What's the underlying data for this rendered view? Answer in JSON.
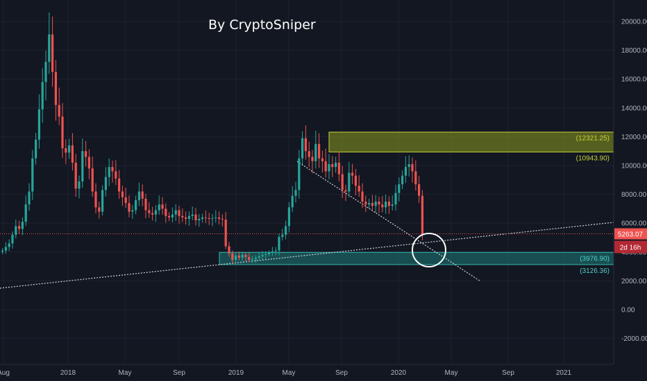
{
  "watermark": "By CryptoSniper",
  "colors": {
    "background": "#131722",
    "bull": "#26a69a",
    "bear": "#ef5350",
    "grid": "#1e2230",
    "resistance_zone": "#8c9a1e",
    "support_zone": "#1e7b78",
    "price_line": "#ef5350",
    "circle": "#ffffff"
  },
  "chart_data": {
    "type": "candlestick",
    "timeframe": "weekly",
    "ylim": [
      -3000,
      21000
    ],
    "y_ticks": [
      "20000.00",
      "18000.00",
      "16000.00",
      "14000.00",
      "12000.00",
      "10000.00",
      "8000.00",
      "6000.00",
      "4000.00",
      "2000.00",
      "0.00",
      "-2000.00"
    ],
    "x_ticks": [
      "Aug",
      "2018",
      "May",
      "Sep",
      "2019",
      "May",
      "Sep",
      "2020",
      "May",
      "Sep",
      "2021"
    ],
    "current_price": {
      "label": "5263.07",
      "value": 5263.07
    },
    "countdown": "2d 16h",
    "zones": [
      {
        "name": "resistance",
        "low": 10943.9,
        "high": 12321.25,
        "low_label": "(10943.90)",
        "high_label": "(12321.25)"
      },
      {
        "name": "support",
        "low": 3126.36,
        "high": 3976.9,
        "low_label": "(3126.36)",
        "high_label": "(3976.90)"
      }
    ],
    "trendlines": [
      {
        "name": "rising-support",
        "style": "dotted"
      },
      {
        "name": "falling-trend",
        "style": "dotted"
      }
    ],
    "series_close": [
      4100,
      4350,
      4600,
      5200,
      5800,
      5600,
      6100,
      7300,
      8200,
      10500,
      11800,
      13900,
      15800,
      17200,
      19100,
      16500,
      14200,
      13400,
      11200,
      10900,
      11400,
      10200,
      8400,
      8900,
      11000,
      10600,
      9800,
      8200,
      7100,
      6800,
      8300,
      9200,
      9900,
      9600,
      9100,
      8200,
      7800,
      7400,
      6800,
      6900,
      7600,
      8200,
      7700,
      6900,
      6700,
      6600,
      6900,
      7300,
      7000,
      6500,
      6400,
      6600,
      6900,
      6500,
      6400,
      6300,
      6500,
      6600,
      6200,
      6300,
      6400,
      6350,
      6300,
      6350,
      6400,
      6300,
      6250,
      4400,
      3900,
      3450,
      3750,
      3600,
      3800,
      3650,
      3450,
      3500,
      3600,
      3700,
      3800,
      3850,
      3950,
      4050,
      4100,
      5050,
      5200,
      5800,
      7100,
      7900,
      8300,
      10500,
      11900,
      11000,
      10600,
      10300,
      11500,
      10500,
      10300,
      9600,
      10100,
      9900,
      10200,
      9400,
      8300,
      8200,
      9500,
      9300,
      8600,
      8200,
      7500,
      7300,
      7400,
      7200,
      7500,
      7300,
      7100,
      7500,
      7200,
      7300,
      8100,
      8700,
      9300,
      9900,
      10100,
      9600,
      8700,
      7900,
      5200
    ]
  }
}
